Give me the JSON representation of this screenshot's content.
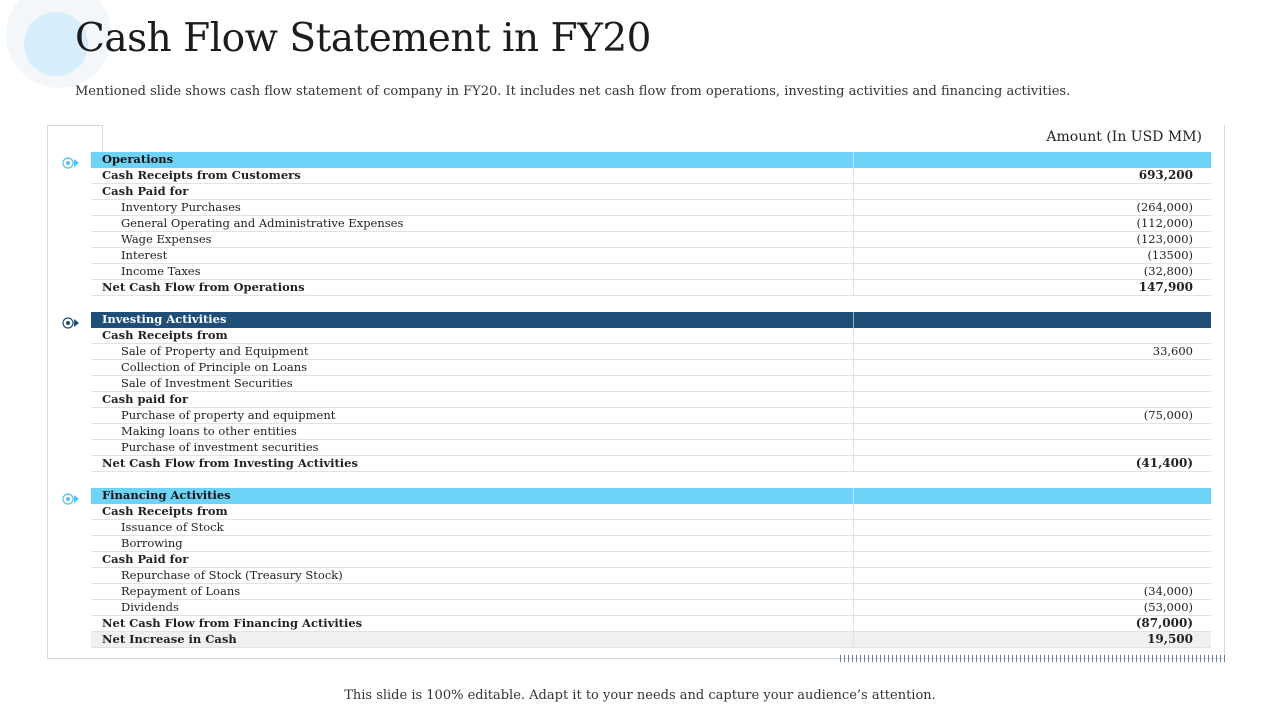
{
  "slide": {
    "title": "Cash Flow Statement in FY20",
    "subtitle": "Mentioned slide shows cash flow statement of company in FY20. It includes net cash flow from operations, investing activities and financing activities.",
    "footer": "This slide is 100% editable. Adapt it to your needs and capture your audience’s attention."
  },
  "table": {
    "amount_header": "Amount (In USD MM)",
    "rows": [
      {
        "label": "Operations",
        "value": "",
        "kind": "head-light"
      },
      {
        "label": "Cash Receipts from Customers",
        "value": "693,200",
        "kind": "sub"
      },
      {
        "label": "Cash Paid for",
        "value": "",
        "kind": "sub"
      },
      {
        "label": "Inventory  Purchases",
        "value": "(264,000)",
        "kind": "item"
      },
      {
        "label": "General Operating and Administrative Expenses",
        "value": "(112,000)",
        "kind": "item"
      },
      {
        "label": "Wage Expenses",
        "value": "(123,000)",
        "kind": "item"
      },
      {
        "label": "Interest",
        "value": "(13500)",
        "kind": "item"
      },
      {
        "label": "Income Taxes",
        "value": "(32,800)",
        "kind": "item"
      },
      {
        "label": "Net Cash Flow from Operations",
        "value": "147,900",
        "kind": "bold"
      },
      {
        "label": "",
        "value": "",
        "kind": "spacer"
      },
      {
        "label": "Investing Activities",
        "value": "",
        "kind": "head-dark"
      },
      {
        "label": "Cash Receipts from",
        "value": "",
        "kind": "sub"
      },
      {
        "label": "Sale of Property and Equipment",
        "value": "33,600",
        "kind": "item"
      },
      {
        "label": "Collection of Principle on Loans",
        "value": "",
        "kind": "item"
      },
      {
        "label": "Sale of Investment Securities",
        "value": "",
        "kind": "item"
      },
      {
        "label": "Cash paid for",
        "value": "",
        "kind": "sub"
      },
      {
        "label": "Purchase of property and equipment",
        "value": "(75,000)",
        "kind": "item"
      },
      {
        "label": "Making loans to other entities",
        "value": "",
        "kind": "item"
      },
      {
        "label": "Purchase of investment securities",
        "value": "",
        "kind": "item"
      },
      {
        "label": "Net Cash Flow from Investing Activities",
        "value": "(41,400)",
        "kind": "bold"
      },
      {
        "label": "",
        "value": "",
        "kind": "spacer"
      },
      {
        "label": "Financing Activities",
        "value": "",
        "kind": "head-light"
      },
      {
        "label": "Cash Receipts from",
        "value": "",
        "kind": "sub"
      },
      {
        "label": "Issuance of Stock",
        "value": "",
        "kind": "item"
      },
      {
        "label": "Borrowing",
        "value": "",
        "kind": "item"
      },
      {
        "label": "Cash Paid for",
        "value": "",
        "kind": "sub"
      },
      {
        "label": "Repurchase of Stock (Treasury Stock)",
        "value": "",
        "kind": "item"
      },
      {
        "label": "Repayment of Loans",
        "value": "(34,000)",
        "kind": "item"
      },
      {
        "label": "Dividends",
        "value": "(53,000)",
        "kind": "item"
      },
      {
        "label": "Net Cash Flow from Financing Activities",
        "value": "(87,000)",
        "kind": "bold"
      },
      {
        "label": "Net Increase in Cash",
        "value": "19,500",
        "kind": "total"
      }
    ]
  },
  "colors": {
    "section_light": "#6dd3f7",
    "section_dark": "#1f4e79",
    "marker": "#4fc3f7"
  },
  "icons": {
    "section_marker": "target-arrow-icon"
  }
}
